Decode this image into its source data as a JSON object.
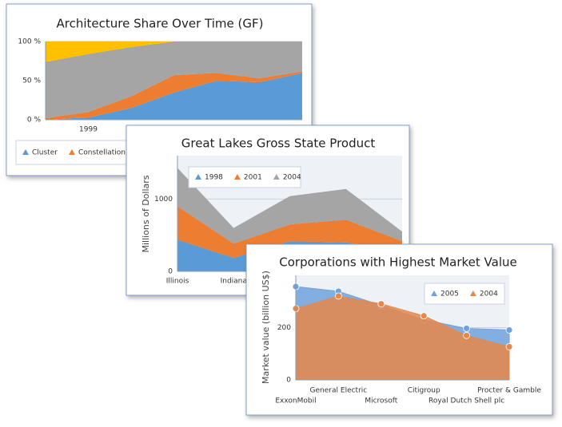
{
  "chart_data": [
    {
      "type": "area",
      "stacked": true,
      "title": "Architecture Share Over Time (GF)",
      "categories": [
        null,
        "1999",
        null,
        null,
        null,
        null,
        null
      ],
      "series": [
        {
          "name": "Cluster",
          "color": "#5b9bd5",
          "values": [
            0,
            3,
            15,
            35,
            50,
            48,
            60
          ]
        },
        {
          "name": "Constellations",
          "color": "#ed7d31",
          "values": [
            2,
            7,
            15,
            22,
            10,
            5,
            2
          ]
        },
        {
          "color": "#a5a5a5",
          "values": [
            72,
            74,
            63,
            43,
            40,
            47,
            38
          ]
        },
        {
          "color": "#ffc000",
          "values": [
            26,
            16,
            7,
            0,
            0,
            0,
            0
          ]
        }
      ],
      "ylim": [
        0,
        100
      ],
      "yticks": [
        {
          "value": 0,
          "label": "0 %"
        },
        {
          "value": 50,
          "label": "50 %"
        },
        {
          "value": 100,
          "label": "100 %"
        }
      ],
      "grid": true,
      "legend": "bottom"
    },
    {
      "type": "area",
      "stacked": true,
      "title": "Great Lakes Gross State Product",
      "y_label": "Millions of Dollars",
      "categories": [
        "Illinois",
        "Indiana",
        null,
        null,
        null
      ],
      "series": [
        {
          "name": "1998",
          "color": "#5b9bd5",
          "values": [
            440,
            187,
            418,
            400,
            300
          ]
        },
        {
          "name": "2001",
          "color": "#ed7d31",
          "values": [
            460,
            198,
            232,
            315,
            118
          ]
        },
        {
          "name": "2004",
          "color": "#a5a5a5",
          "values": [
            530,
            215,
            390,
            425,
            132
          ]
        }
      ],
      "ylim": [
        0,
        1600
      ],
      "yticks": [
        0,
        1000
      ],
      "grid": true,
      "legend": "top-left"
    },
    {
      "type": "area",
      "stacked": false,
      "markers": true,
      "title": "Corporations with Highest Market Value",
      "y_label": "Market value (billion US$)",
      "categories": [
        "ExxonMobil",
        "General Electric",
        "Microsoft",
        "Citigroup",
        "Royal Dutch Shell plc",
        "Procter & Gamble"
      ],
      "series": [
        {
          "name": "2005",
          "color": "#6fa3dc",
          "values": [
            357,
            339,
            285,
            230,
            197,
            191
          ]
        },
        {
          "name": "2004",
          "color": "#e8874a",
          "values": [
            273,
            321,
            291,
            245,
            170,
            127
          ]
        }
      ],
      "ylim": [
        0,
        400
      ],
      "yticks": [
        0,
        200
      ],
      "grid": true,
      "legend": "top-right"
    }
  ]
}
